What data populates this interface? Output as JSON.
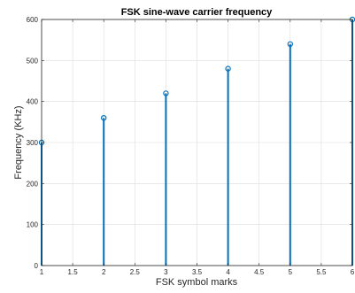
{
  "chart_data": {
    "type": "stem",
    "title": "FSK sine-wave carrier frequency",
    "xlabel": "FSK symbol marks",
    "ylabel": "Frequency (KHz)",
    "xlim": [
      1,
      6
    ],
    "ylim": [
      0,
      600
    ],
    "xticks": [
      1,
      1.5,
      2,
      2.5,
      3,
      3.5,
      4,
      4.5,
      5,
      5.5,
      6
    ],
    "xtick_labels": [
      "1",
      "1.5",
      "2",
      "2.5",
      "3",
      "3.5",
      "4",
      "4.5",
      "5",
      "5.5",
      "6"
    ],
    "yticks": [
      0,
      100,
      200,
      300,
      400,
      500,
      600
    ],
    "ytick_labels": [
      "0",
      "100",
      "200",
      "300",
      "400",
      "500",
      "600"
    ],
    "grid": true,
    "box": true,
    "series": [
      {
        "x": [
          1,
          2,
          3,
          4,
          5,
          6
        ],
        "y": [
          300,
          360,
          420,
          480,
          540,
          600
        ],
        "color": "#0072BD"
      }
    ]
  }
}
